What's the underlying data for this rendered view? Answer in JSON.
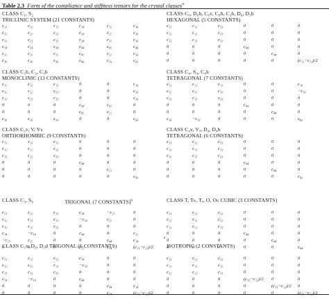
{
  "caption": {
    "label": "Table 2.3",
    "title": "Form of the compliance and stiffness tensors for the crystal classes",
    "footnote_mark": "a"
  },
  "blocks": [
    {
      "id": "triclinic",
      "headers": [
        "CLASS C₁, S₂",
        "TRICLINIC SYSTEM (21 CONSTANTS)"
      ],
      "matrix": [
        [
          "c₁₁",
          "c₁₂",
          "c₁₃",
          "c₁₄",
          "c₁₅",
          "c₁₆"
        ],
        [
          "c₁₂",
          "c₂₂",
          "c₂₃",
          "c₂₄",
          "c₂₅",
          "c₂₆"
        ],
        [
          "c₁₃",
          "c₂₃",
          "c₃₃",
          "c₃₄",
          "c₃₅",
          "c₃₆"
        ],
        [
          "c₁₄",
          "c₂₄",
          "c₃₄",
          "c₄₄",
          "c₄₅",
          "c₄₆"
        ],
        [
          "c₁₅",
          "c₂₅",
          "c₃₅",
          "c₄₅",
          "c₅₅",
          "c₅₆"
        ],
        [
          "c₁₆",
          "c₂₆",
          "c₃₆",
          "c₄₆",
          "c₅₆",
          "c₆₆"
        ]
      ]
    },
    {
      "id": "hexagonal",
      "headers": [
        "CLASS C₆, D₆h, C₆v, C₆h, C₃h, D₆, D₃h",
        "HEXAGONAL (5 CONSTANTS)"
      ],
      "matrix": [
        [
          "c₁₁",
          "c₁₂",
          "c₁₃",
          "0",
          "0",
          "0"
        ],
        [
          "c₁₂",
          "c₁₁",
          "c₁₃",
          "0",
          "0",
          "0"
        ],
        [
          "c₁₃",
          "c₁₃",
          "c₃₃",
          "0",
          "0",
          "0"
        ],
        [
          "0",
          "0",
          "0",
          "c₄₄",
          "0",
          "0"
        ],
        [
          "0",
          "0",
          "0",
          "0",
          "c₄₄",
          "0"
        ],
        [
          "0",
          "0",
          "0",
          "0",
          "0",
          "(c₁₁−c₁₂)/2"
        ]
      ]
    },
    {
      "id": "monoclinic",
      "headers": [
        "CLASS C₂h, C₂, C₁h",
        "MONOCLINIC (13 CONSTANTS)"
      ],
      "matrix": [
        [
          "c₁₁",
          "c₁₂",
          "c₁₃",
          "0",
          "0",
          "c₁₆"
        ],
        [
          "c₁₂",
          "c₂₂",
          "c₂₃",
          "0",
          "0",
          "c₂₆"
        ],
        [
          "c₁₃",
          "c₂₃",
          "c₃₃",
          "0",
          "0",
          "c₃₆"
        ],
        [
          "0",
          "0",
          "0",
          "c₄₄",
          "c₄₅",
          "0"
        ],
        [
          "0",
          "0",
          "0",
          "c₄₅",
          "c₅₅",
          "0"
        ],
        [
          "c₁₆",
          "c₂₆",
          "c₃₆",
          "0",
          "0",
          "c₆₆"
        ]
      ]
    },
    {
      "id": "tetragonal-7",
      "headers": [
        "CLASS C₄, S₄, C₄h",
        "TETRAGONAL (7 CONSTANTS)"
      ],
      "matrix": [
        [
          "c₁₁",
          "c₁₂",
          "c₁₃",
          "0",
          "0",
          "c₁₆"
        ],
        [
          "c₁₂",
          "c₁₁",
          "c₁₃",
          "0",
          "0",
          "−c₁₆"
        ],
        [
          "c₁₃",
          "c₁₃",
          "c₃₃",
          "0",
          "0",
          "0"
        ],
        [
          "0",
          "0",
          "0",
          "c₄₄",
          "0",
          "0"
        ],
        [
          "0",
          "0",
          "0",
          "0",
          "c₄₄",
          "0"
        ],
        [
          "c₁₆",
          "−c₁₆",
          "0",
          "0",
          "0",
          "c₆₆"
        ]
      ]
    },
    {
      "id": "orthorhombic",
      "headers": [
        "CLASS C₂v, V, Vₕ",
        "ORTHORHOMBIC (9 CONSTANTS)"
      ],
      "matrix": [
        [
          "c₁₁",
          "c₁₂",
          "c₁₃",
          "0",
          "0",
          "0"
        ],
        [
          "c₁₂",
          "c₂₂",
          "c₂₃",
          "0",
          "0",
          "0"
        ],
        [
          "c₁₃",
          "c₂₃",
          "c₃₃",
          "0",
          "0",
          "0"
        ],
        [
          "0",
          "0",
          "0",
          "c₄₄",
          "0",
          "0"
        ],
        [
          "0",
          "0",
          "0",
          "0",
          "c₅₅",
          "0"
        ],
        [
          "0",
          "0",
          "0",
          "0",
          "0",
          "c₆₆"
        ]
      ]
    },
    {
      "id": "tetragonal-6",
      "headers": [
        "CLASS C₄v, Vₐ, D₄, D₄h",
        "TETRAGONAL (6 CONSTANTS)"
      ],
      "matrix": [
        [
          "c₁₁",
          "c₁₂",
          "c₁₃",
          "0",
          "0",
          "0"
        ],
        [
          "c₁₂",
          "c₁₁",
          "c₁₃",
          "0",
          "0",
          "0"
        ],
        [
          "c₁₃",
          "c₁₃",
          "c₃₃",
          "0",
          "0",
          "0"
        ],
        [
          "0",
          "0",
          "0",
          "c₄₄",
          "0",
          "0"
        ],
        [
          "0",
          "0",
          "0",
          "0",
          "c₄₄",
          "0"
        ],
        [
          "0",
          "0",
          "0",
          "0",
          "0",
          "c₆₆"
        ]
      ]
    },
    {
      "id": "trigonal-7",
      "headers": [
        "CLASS C₃, S₆",
        ""
      ],
      "matrix": [
        [
          "c₁₁",
          "c₁₂",
          "c₁₃",
          "c₁₄",
          "−c₂₅",
          "0"
        ],
        [
          "c₁₂",
          "c₁₁",
          "c₁₃",
          "−c₁₄",
          "c₂₅",
          "0"
        ],
        [
          "c₁₃",
          "c₁₃",
          "c₃₃",
          "0",
          "0",
          "0"
        ],
        [
          "c₁₄",
          "−c₁₄",
          "0",
          "c₄₄",
          "0",
          "c₂₅"
        ],
        [
          "−c₂₅",
          "c₂₅",
          "0",
          "0",
          "c₄₄",
          "c₁₄"
        ],
        [
          "0",
          "0",
          "0",
          "c₂₅",
          "c₁₄",
          "(c₁₁−c₁₂)/2"
        ]
      ]
    },
    {
      "id": "cubic",
      "headers": [
        "CLASS T, Tₕ, Tₐ, O, Oₕ CUBIC (3 CONSTANTS)",
        ""
      ],
      "matrix": [
        [
          "c₁₁",
          "c₁₂",
          "c₁₂",
          "0",
          "0",
          "0"
        ],
        [
          "c₁₂",
          "c₁₁",
          "c₁₂",
          "0",
          "0",
          "0"
        ],
        [
          "c₁₂",
          "c₁₂",
          "c₁₁",
          "0",
          "0",
          "0"
        ],
        [
          "0",
          "0",
          "0",
          "c₄₄",
          "0",
          "0"
        ],
        [
          "0",
          "0",
          "0",
          "0",
          "c₄₄",
          "0"
        ],
        [
          "0",
          "0",
          "0",
          "0",
          "0",
          "c₄₄"
        ]
      ]
    },
    {
      "id": "trigonal-6",
      "headers": [
        "CLASS C₃v, D₃, D₃d TRIGONAL (6 CONSTANTS)",
        ""
      ],
      "matrix": [
        [
          "c₁₁",
          "c₁₂",
          "c₁₃",
          "c₁₄",
          "0",
          "0"
        ],
        [
          "c₁₂",
          "c₁₁",
          "c₁₃",
          "−c₁₄",
          "0",
          "0"
        ],
        [
          "c₁₃",
          "c₁₃",
          "c₃₃",
          "0",
          "0",
          "0"
        ],
        [
          "c₁₄",
          "−c₁₄",
          "0",
          "c₄₄",
          "0",
          "0"
        ],
        [
          "0",
          "0",
          "0",
          "0",
          "c₄₄",
          "c₁₄"
        ],
        [
          "0",
          "0",
          "0",
          "0",
          "c₁₄",
          "(c₁₁−c₁₂)/2"
        ]
      ]
    },
    {
      "id": "isotropic",
      "headers": [
        "ISOTROPIC (2 CONSTANTS)",
        ""
      ],
      "matrix": [
        [
          "c₁₁",
          "c₁₂",
          "c₁₂",
          "0",
          "0",
          "0"
        ],
        [
          "c₁₂",
          "c₁₁",
          "c₁₂",
          "0",
          "0",
          "0"
        ],
        [
          "c₁₂",
          "c₁₂",
          "c₁₁",
          "0",
          "0",
          "0"
        ],
        [
          "0",
          "0",
          "0",
          "(c₁₁−c₁₂)/2",
          "0",
          "0"
        ],
        [
          "0",
          "0",
          "0",
          "0",
          "(c₁₁−c₁₂)/2",
          "0"
        ],
        [
          "0",
          "0",
          "0",
          "0",
          "0",
          "(c₁₁−c₁₂)/2"
        ]
      ]
    }
  ],
  "extras": {
    "trigonal_title": "TRIGONAL (7 CONSTANTS)",
    "trigonal_mark": "b",
    "cubic_note": "c"
  }
}
